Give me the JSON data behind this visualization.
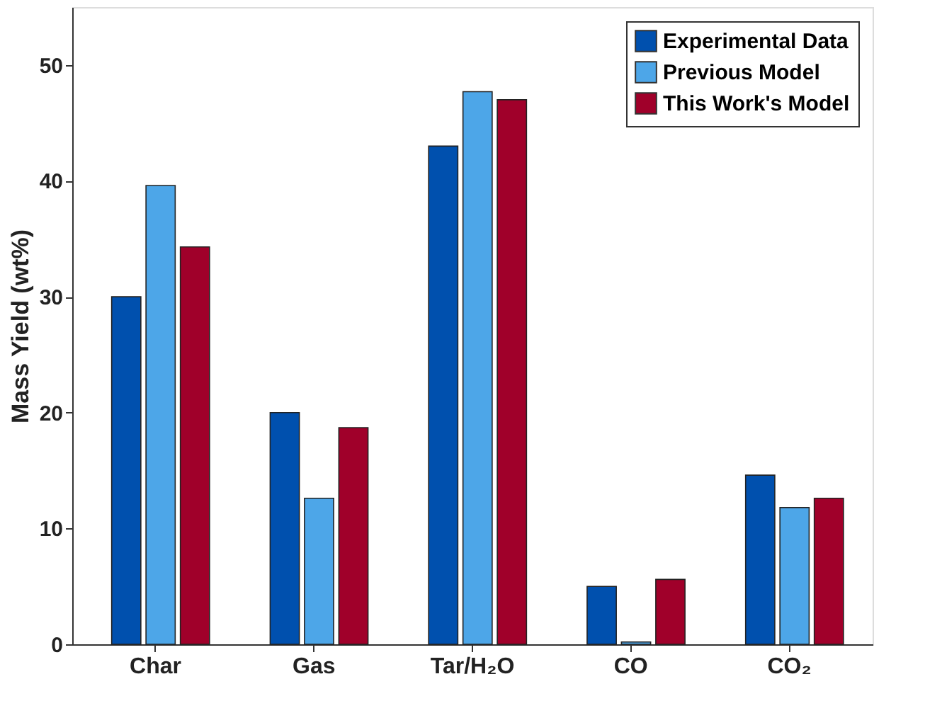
{
  "chart_data": {
    "type": "bar",
    "ylabel": "Mass Yield (wt%)",
    "categories": [
      "Char",
      "Gas",
      "Tar/H₂O",
      "CO",
      "CO₂"
    ],
    "series": [
      {
        "name": "Experimental Data",
        "color": "#0050ae",
        "values": [
          30.0,
          20.0,
          43.0,
          5.0,
          14.6
        ]
      },
      {
        "name": "Previous Model",
        "color": "#4da6e8",
        "values": [
          39.6,
          12.6,
          47.7,
          0.2,
          11.8
        ]
      },
      {
        "name": "This Work's Model",
        "color": "#a0002a",
        "values": [
          34.3,
          18.7,
          47.0,
          5.6,
          12.6
        ]
      }
    ],
    "ylim": [
      0,
      55
    ],
    "yticks": [
      0,
      10,
      20,
      30,
      40,
      50
    ],
    "grid": false,
    "legend": "top right"
  }
}
